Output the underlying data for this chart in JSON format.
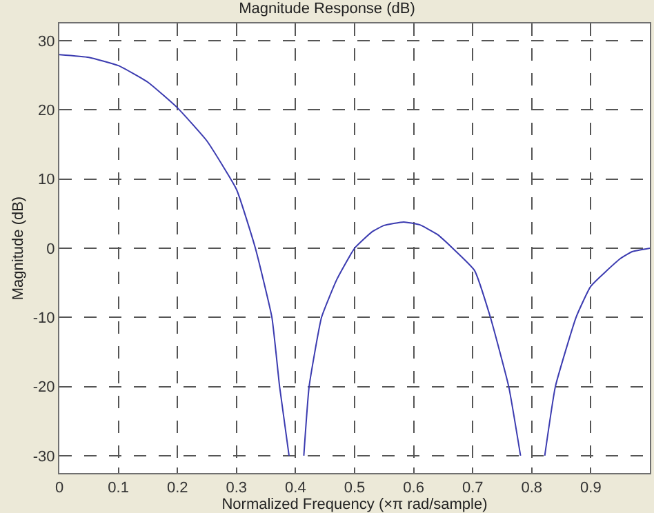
{
  "chart_data": {
    "type": "line",
    "title": "Magnitude Response (dB)",
    "xlabel": "Normalized Frequency (×π rad/sample)",
    "ylabel": "Magnitude (dB)",
    "xlim": [
      0,
      1
    ],
    "ylim": [
      -32.5,
      32.5
    ],
    "xticks": [
      0,
      0.1,
      0.2,
      0.3,
      0.4,
      0.5,
      0.6,
      0.7,
      0.8,
      0.9
    ],
    "yticks": [
      -30,
      -20,
      -10,
      0,
      10,
      20,
      30
    ],
    "grid": true,
    "line_style": "solid",
    "marker": "none",
    "series": [
      {
        "color": "#3b3bb0",
        "x": [
          0,
          0.05,
          0.1,
          0.15,
          0.2,
          0.25,
          0.3,
          0.332,
          0.36,
          0.373,
          0.389,
          0.391,
          0.4,
          0.412,
          0.414,
          0.423,
          0.444,
          0.47,
          0.5,
          0.53,
          0.55,
          0.583,
          0.61,
          0.64,
          0.666,
          0.703,
          0.73,
          0.761,
          0.781,
          0.783,
          0.8,
          0.82,
          0.822,
          0.84,
          0.875,
          0.9,
          0.95,
          0.97,
          1.0
        ],
        "values": [
          28,
          27.6,
          26.4,
          24,
          20.3,
          15.5,
          8.5,
          0,
          -10,
          -20,
          -30,
          null,
          null,
          null,
          -30,
          -20,
          -10,
          -4.5,
          0,
          2.4,
          3.3,
          3.8,
          3.4,
          2,
          0,
          -3.2,
          -10,
          -20,
          -30,
          null,
          null,
          null,
          -30,
          -20,
          -10,
          -5.5,
          -1.5,
          -0.5,
          0
        ]
      }
    ]
  }
}
